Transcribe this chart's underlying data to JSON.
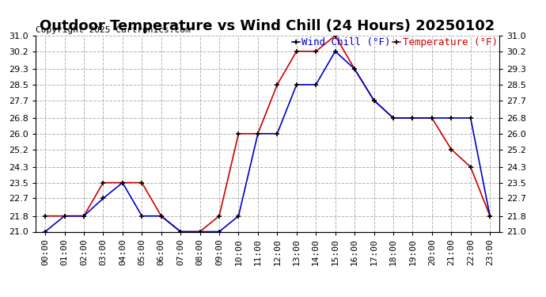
{
  "title": "Outdoor Temperature vs Wind Chill (24 Hours) 20250102",
  "copyright": "Copyright 2025 Curtronics.com",
  "legend_wind": "Wind Chill (°F)",
  "legend_temp": "Temperature (°F)",
  "hours": [
    "00:00",
    "01:00",
    "02:00",
    "03:00",
    "04:00",
    "05:00",
    "06:00",
    "07:00",
    "08:00",
    "09:00",
    "10:00",
    "11:00",
    "12:00",
    "13:00",
    "14:00",
    "15:00",
    "16:00",
    "17:00",
    "18:00",
    "19:00",
    "20:00",
    "21:00",
    "22:00",
    "23:00"
  ],
  "temperature": [
    21.8,
    21.8,
    21.8,
    23.5,
    23.5,
    23.5,
    21.8,
    21.0,
    21.0,
    21.8,
    26.0,
    26.0,
    28.5,
    30.2,
    30.2,
    31.0,
    29.3,
    27.7,
    26.8,
    26.8,
    26.8,
    25.2,
    24.3,
    21.8
  ],
  "wind_chill": [
    21.0,
    21.8,
    21.8,
    22.7,
    23.5,
    21.8,
    21.8,
    21.0,
    21.0,
    21.0,
    21.8,
    26.0,
    26.0,
    28.5,
    28.5,
    30.2,
    29.3,
    27.7,
    26.8,
    26.8,
    26.8,
    26.8,
    26.8,
    21.8
  ],
  "temp_color": "#cc0000",
  "wind_color": "#0000cc",
  "ylim_min": 21.0,
  "ylim_max": 31.0,
  "yticks": [
    21.0,
    21.8,
    22.7,
    23.5,
    24.3,
    25.2,
    26.0,
    26.8,
    27.7,
    28.5,
    29.3,
    30.2,
    31.0
  ],
  "background_color": "#ffffff",
  "grid_color": "#aaaaaa",
  "title_fontsize": 13,
  "copyright_fontsize": 8,
  "legend_fontsize": 9,
  "tick_fontsize": 8,
  "axis_label_fontsize": 8
}
